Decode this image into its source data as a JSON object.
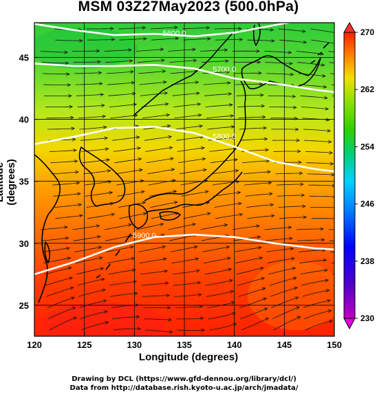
{
  "title": "MSM 03Z27May2023 (500.0hPa)",
  "x_axis": {
    "label": "Longitude (degrees)",
    "range": [
      120,
      150
    ],
    "ticks": [
      "120",
      "125",
      "130",
      "135",
      "140",
      "145",
      "150"
    ]
  },
  "y_axis": {
    "label": "Latitude  (degrees)",
    "range": [
      22.5,
      47.8
    ],
    "ticks": [
      "25",
      "30",
      "35",
      "40",
      "45"
    ]
  },
  "colorbar": {
    "min": 230,
    "max": 270,
    "ticks": [
      "230",
      "238",
      "246",
      "254",
      "262",
      "270"
    ]
  },
  "contours": [
    {
      "label": "5600.0",
      "value": 5600
    },
    {
      "label": "5700.0",
      "value": 5700
    },
    {
      "label": "5800.0",
      "value": 5800
    },
    {
      "label": "5900.0",
      "value": 5900
    }
  ],
  "credits": {
    "line1": "Drawing by DCL (https://www.gfd-dennou.org/library/dcl/)",
    "line2": "Data from http://database.rish.kyoto-u.ac.jp/arch/jmadata/"
  }
}
